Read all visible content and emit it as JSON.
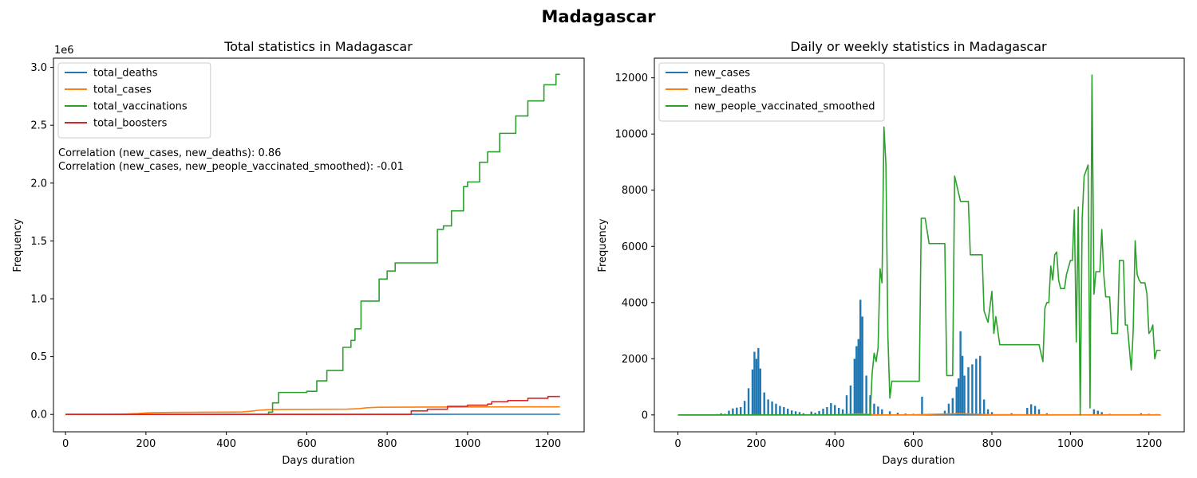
{
  "figure": {
    "title": "Madagascar"
  },
  "colors": {
    "blue": "#1f77b4",
    "orange": "#ff7f0e",
    "green": "#2ca02c",
    "red": "#d62728"
  },
  "chart_data": [
    {
      "type": "line",
      "title": "Total statistics in Madagascar",
      "xlabel": "Days duration",
      "ylabel": "Frequency",
      "y_offset_label": "1e6",
      "xlim": [
        -30,
        1290
      ],
      "ylim": [
        -0.15,
        3.08
      ],
      "xticks": [
        0,
        200,
        400,
        600,
        800,
        1000,
        1200
      ],
      "yticks": [
        0.0,
        0.5,
        1.0,
        1.5,
        2.0,
        2.5,
        3.0
      ],
      "ytick_labels": [
        "0.0",
        "0.5",
        "1.0",
        "1.5",
        "2.0",
        "2.5",
        "3.0"
      ],
      "legend": "upper-left",
      "annotations": [
        "Correlation (new_cases, new_deaths): 0.86",
        "Correlation (new_cases, new_people_vaccinated_smoothed): -0.01"
      ],
      "series": [
        {
          "name": "total_deaths",
          "color": "#1f77b4",
          "step": false,
          "points": [
            [
              0,
              0
            ],
            [
              100,
              0.0002
            ],
            [
              200,
              0.0004
            ],
            [
              400,
              0.0008
            ],
            [
              470,
              0.001
            ],
            [
              600,
              0.0012
            ],
            [
              800,
              0.0014
            ],
            [
              1000,
              0.0015
            ],
            [
              1230,
              0.0015
            ]
          ]
        },
        {
          "name": "total_cases",
          "color": "#ff7f0e",
          "step": false,
          "points": [
            [
              0,
              0
            ],
            [
              100,
              0.001
            ],
            [
              150,
              0.004
            ],
            [
              180,
              0.008
            ],
            [
              200,
              0.013
            ],
            [
              220,
              0.016
            ],
            [
              260,
              0.0175
            ],
            [
              320,
              0.0185
            ],
            [
              400,
              0.02
            ],
            [
              440,
              0.022
            ],
            [
              460,
              0.028
            ],
            [
              480,
              0.036
            ],
            [
              500,
              0.041
            ],
            [
              540,
              0.043
            ],
            [
              600,
              0.044
            ],
            [
              700,
              0.046
            ],
            [
              730,
              0.05
            ],
            [
              750,
              0.058
            ],
            [
              780,
              0.062
            ],
            [
              850,
              0.063
            ],
            [
              900,
              0.064
            ],
            [
              1000,
              0.065
            ],
            [
              1100,
              0.066
            ],
            [
              1230,
              0.066
            ]
          ]
        },
        {
          "name": "total_vaccinations",
          "color": "#2ca02c",
          "step": true,
          "points": [
            [
              0,
              0
            ],
            [
              500,
              0
            ],
            [
              505,
              0.02
            ],
            [
              515,
              0.1
            ],
            [
              530,
              0.19
            ],
            [
              600,
              0.2
            ],
            [
              625,
              0.29
            ],
            [
              650,
              0.38
            ],
            [
              690,
              0.58
            ],
            [
              710,
              0.64
            ],
            [
              720,
              0.74
            ],
            [
              735,
              0.98
            ],
            [
              780,
              1.17
            ],
            [
              800,
              1.24
            ],
            [
              820,
              1.31
            ],
            [
              925,
              1.6
            ],
            [
              940,
              1.63
            ],
            [
              960,
              1.76
            ],
            [
              990,
              1.97
            ],
            [
              1000,
              2.01
            ],
            [
              1030,
              2.18
            ],
            [
              1050,
              2.27
            ],
            [
              1080,
              2.43
            ],
            [
              1120,
              2.58
            ],
            [
              1150,
              2.71
            ],
            [
              1190,
              2.85
            ],
            [
              1220,
              2.94
            ],
            [
              1230,
              2.94
            ]
          ]
        },
        {
          "name": "total_boosters",
          "color": "#d62728",
          "step": true,
          "points": [
            [
              0,
              0
            ],
            [
              858,
              0
            ],
            [
              860,
              0.03
            ],
            [
              900,
              0.045
            ],
            [
              950,
              0.07
            ],
            [
              1000,
              0.08
            ],
            [
              1050,
              0.09
            ],
            [
              1060,
              0.11
            ],
            [
              1100,
              0.12
            ],
            [
              1150,
              0.14
            ],
            [
              1200,
              0.155
            ],
            [
              1230,
              0.155
            ]
          ]
        }
      ]
    },
    {
      "type": "line",
      "title": "Daily or weekly statistics in Madagascar",
      "xlabel": "Days duration",
      "ylabel": "Frequency",
      "xlim": [
        -60,
        1290
      ],
      "ylim": [
        -600,
        12700
      ],
      "xticks": [
        0,
        200,
        400,
        600,
        800,
        1000,
        1200
      ],
      "yticks": [
        0,
        2000,
        4000,
        6000,
        8000,
        10000,
        12000
      ],
      "ytick_labels": [
        "0",
        "2000",
        "4000",
        "6000",
        "8000",
        "10000",
        "12000"
      ],
      "legend": "upper-left",
      "series": [
        {
          "name": "new_cases",
          "color": "#1f77b4",
          "render": "spikes",
          "points": [
            [
              100,
              30
            ],
            [
              110,
              60
            ],
            [
              120,
              40
            ],
            [
              130,
              150
            ],
            [
              140,
              230
            ],
            [
              150,
              260
            ],
            [
              160,
              280
            ],
            [
              170,
              500
            ],
            [
              180,
              950
            ],
            [
              190,
              1620
            ],
            [
              195,
              2250
            ],
            [
              200,
              2000
            ],
            [
              205,
              2380
            ],
            [
              210,
              1650
            ],
            [
              220,
              800
            ],
            [
              230,
              550
            ],
            [
              240,
              480
            ],
            [
              250,
              400
            ],
            [
              260,
              320
            ],
            [
              270,
              280
            ],
            [
              280,
              220
            ],
            [
              290,
              160
            ],
            [
              300,
              130
            ],
            [
              310,
              100
            ],
            [
              320,
              60
            ],
            [
              340,
              120
            ],
            [
              350,
              80
            ],
            [
              360,
              140
            ],
            [
              370,
              220
            ],
            [
              380,
              280
            ],
            [
              390,
              420
            ],
            [
              400,
              350
            ],
            [
              410,
              250
            ],
            [
              420,
              200
            ],
            [
              430,
              700
            ],
            [
              440,
              1050
            ],
            [
              450,
              2000
            ],
            [
              455,
              2450
            ],
            [
              460,
              2700
            ],
            [
              465,
              4100
            ],
            [
              470,
              3500
            ],
            [
              480,
              1400
            ],
            [
              490,
              700
            ],
            [
              500,
              400
            ],
            [
              510,
              300
            ],
            [
              520,
              200
            ],
            [
              540,
              130
            ],
            [
              560,
              80
            ],
            [
              580,
              50
            ],
            [
              600,
              40
            ],
            [
              622,
              650
            ],
            [
              640,
              40
            ],
            [
              680,
              150
            ],
            [
              690,
              400
            ],
            [
              700,
              600
            ],
            [
              710,
              1000
            ],
            [
              715,
              1300
            ],
            [
              720,
              2980
            ],
            [
              725,
              2100
            ],
            [
              730,
              1400
            ],
            [
              740,
              1700
            ],
            [
              750,
              1800
            ],
            [
              760,
              2000
            ],
            [
              770,
              2100
            ],
            [
              780,
              550
            ],
            [
              790,
              200
            ],
            [
              800,
              100
            ],
            [
              850,
              60
            ],
            [
              890,
              250
            ],
            [
              900,
              380
            ],
            [
              910,
              320
            ],
            [
              920,
              200
            ],
            [
              940,
              60
            ],
            [
              1000,
              20
            ],
            [
              1060,
              200
            ],
            [
              1070,
              150
            ],
            [
              1080,
              100
            ],
            [
              1100,
              40
            ],
            [
              1180,
              60
            ],
            [
              1200,
              40
            ],
            [
              1220,
              30
            ]
          ]
        },
        {
          "name": "new_deaths",
          "color": "#ff7f0e",
          "render": "line",
          "points": [
            [
              0,
              0
            ],
            [
              100,
              0
            ],
            [
              200,
              5
            ],
            [
              300,
              3
            ],
            [
              400,
              5
            ],
            [
              465,
              40
            ],
            [
              500,
              10
            ],
            [
              600,
              5
            ],
            [
              720,
              50
            ],
            [
              800,
              10
            ],
            [
              1000,
              5
            ],
            [
              1230,
              5
            ]
          ]
        },
        {
          "name": "new_people_vaccinated_smoothed",
          "color": "#2ca02c",
          "render": "line",
          "points": [
            [
              0,
              0
            ],
            [
              490,
              0
            ],
            [
              495,
              1500
            ],
            [
              500,
              2200
            ],
            [
              505,
              1900
            ],
            [
              510,
              2400
            ],
            [
              515,
              5200
            ],
            [
              520,
              4700
            ],
            [
              525,
              10250
            ],
            [
              530,
              8900
            ],
            [
              535,
              2800
            ],
            [
              540,
              600
            ],
            [
              545,
              1200
            ],
            [
              600,
              1200
            ],
            [
              615,
              1200
            ],
            [
              620,
              7000
            ],
            [
              630,
              7000
            ],
            [
              640,
              6100
            ],
            [
              680,
              6100
            ],
            [
              685,
              1400
            ],
            [
              700,
              1400
            ],
            [
              705,
              8500
            ],
            [
              720,
              7600
            ],
            [
              740,
              7600
            ],
            [
              745,
              5700
            ],
            [
              775,
              5700
            ],
            [
              780,
              3700
            ],
            [
              790,
              3300
            ],
            [
              800,
              4400
            ],
            [
              805,
              2900
            ],
            [
              810,
              3500
            ],
            [
              820,
              2500
            ],
            [
              920,
              2500
            ],
            [
              930,
              1900
            ],
            [
              935,
              3800
            ],
            [
              940,
              4000
            ],
            [
              945,
              4000
            ],
            [
              950,
              5300
            ],
            [
              955,
              4800
            ],
            [
              960,
              5700
            ],
            [
              965,
              5800
            ],
            [
              970,
              4800
            ],
            [
              975,
              4500
            ],
            [
              985,
              4500
            ],
            [
              990,
              5000
            ],
            [
              1000,
              5500
            ],
            [
              1005,
              5500
            ],
            [
              1010,
              7300
            ],
            [
              1015,
              2600
            ],
            [
              1020,
              7400
            ],
            [
              1025,
              0
            ],
            [
              1030,
              7000
            ],
            [
              1035,
              8500
            ],
            [
              1045,
              8900
            ],
            [
              1050,
              250
            ],
            [
              1055,
              12100
            ],
            [
              1060,
              4300
            ],
            [
              1065,
              5100
            ],
            [
              1075,
              5100
            ],
            [
              1080,
              6600
            ],
            [
              1085,
              5000
            ],
            [
              1090,
              4200
            ],
            [
              1100,
              4200
            ],
            [
              1105,
              2900
            ],
            [
              1120,
              2900
            ],
            [
              1125,
              5500
            ],
            [
              1135,
              5500
            ],
            [
              1140,
              3200
            ],
            [
              1145,
              3200
            ],
            [
              1155,
              1600
            ],
            [
              1160,
              3000
            ],
            [
              1165,
              6200
            ],
            [
              1170,
              5000
            ],
            [
              1175,
              4800
            ],
            [
              1180,
              4700
            ],
            [
              1190,
              4700
            ],
            [
              1195,
              4300
            ],
            [
              1200,
              2900
            ],
            [
              1205,
              3000
            ],
            [
              1210,
              3200
            ],
            [
              1215,
              2000
            ],
            [
              1220,
              2300
            ],
            [
              1230,
              2300
            ]
          ]
        }
      ]
    }
  ]
}
